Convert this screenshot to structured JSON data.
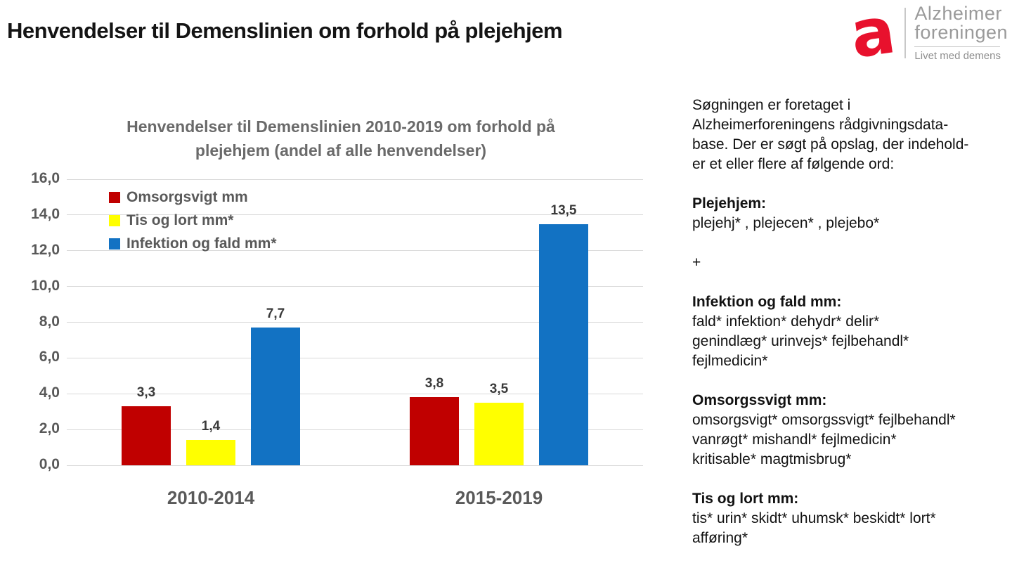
{
  "page": {
    "title": "Henvendelser til Demenslinien om forhold på plejehjem"
  },
  "logo": {
    "mark_letter": "a",
    "brand_red": "#E8112D",
    "name_line1": "Alzheimer",
    "name_line2": "foreningen",
    "tagline": "Livet med demens"
  },
  "chart_data": {
    "type": "bar",
    "title_lines": [
      "Henvendelser til Demenslinien 2010-2019 om forhold på",
      "plejehjem (andel af alle henvendelser)"
    ],
    "categories": [
      "2010-2014",
      "2015-2019"
    ],
    "series": [
      {
        "name": "Omsorgsvigt mm",
        "color": "#C00000",
        "values": [
          3.3,
          3.8
        ],
        "value_labels": [
          "3,3",
          "3,8"
        ]
      },
      {
        "name": "Tis og lort mm*",
        "color": "#FFFF00",
        "values": [
          1.4,
          3.5
        ],
        "value_labels": [
          "1,4",
          "3,5"
        ]
      },
      {
        "name": "Infektion og fald mm*",
        "color": "#1272C3",
        "values": [
          7.7,
          13.5
        ],
        "value_labels": [
          "7,7",
          "13,5"
        ]
      }
    ],
    "ylim": [
      0,
      16
    ],
    "ytick_step": 2,
    "ytick_labels": [
      "0,0",
      "2,0",
      "4,0",
      "6,0",
      "8,0",
      "10,0",
      "12,0",
      "14,0",
      "16,0"
    ],
    "grid": true,
    "legend_position": "top-left-inside",
    "gridline_color": "#d9d9d9"
  },
  "side_panel": {
    "intro_lines": [
      "Søgningen er foretaget i",
      "Alzheimerforeningens rådgivningsdata-",
      "base. Der er søgt på opslag, der indehold-",
      "er et eller flere af følgende ord:"
    ],
    "sections": [
      {
        "heading": "Plejehjem:",
        "lines": [
          "plejehj* , plejecen* , plejebo*"
        ]
      },
      {
        "heading": "",
        "lines": [
          "+"
        ]
      },
      {
        "heading": "Infektion og fald  mm:",
        "lines": [
          "fald* infektion* dehydr* delir*",
          "genindlæg* urinvejs* fejlbehandl*",
          "fejlmedicin*"
        ]
      },
      {
        "heading": "Omsorgssvigt mm:",
        "lines": [
          "omsorgsvigt* omsorgssvigt* fejlbehandl*",
          "vanrøgt* mishandl* fejlmedicin*",
          "kritisable* magtmisbrug*"
        ]
      },
      {
        "heading": "Tis og lort mm:",
        "lines": [
          "tis* urin* skidt* uhumsk* beskidt* lort*",
          "afføring*"
        ]
      }
    ]
  }
}
